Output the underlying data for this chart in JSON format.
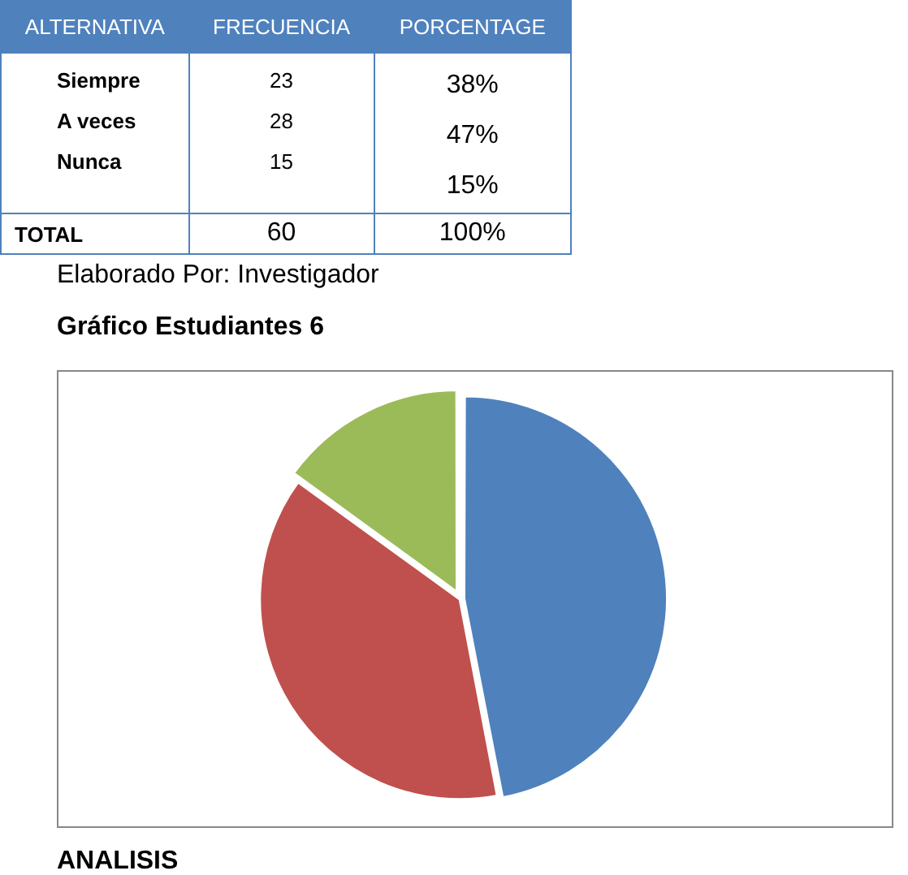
{
  "chart_data": [
    {
      "type": "other",
      "annotations": [
        "ALTERNATIVA",
        "FRECUENCIA",
        "PORCENTAGE",
        "Siempre",
        "23",
        "38%",
        "A veces",
        "28",
        "47%",
        "Nunca",
        "15",
        "15%",
        "TOTAL",
        "60",
        "100%",
        "Elaborado Por: Investigador"
      ]
    },
    {
      "type": "pie",
      "title": "Gráfico Estudiantes 6",
      "categories": [
        null,
        null,
        null
      ],
      "values": [
        47,
        38,
        15
      ],
      "colors": [
        "#4f81bd",
        "#c0504d",
        "#9bbb59"
      ],
      "annotations": [
        "ANALISIS"
      ]
    }
  ]
}
